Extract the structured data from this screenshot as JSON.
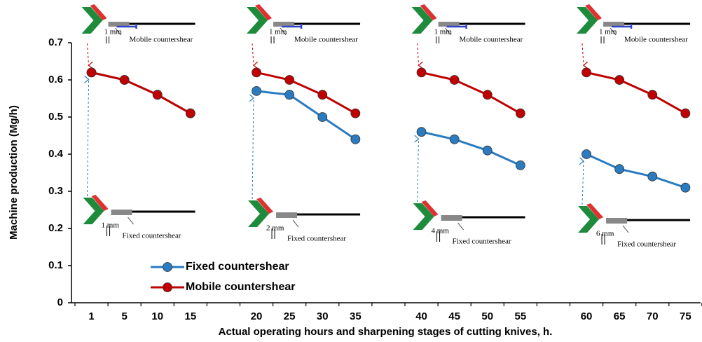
{
  "chart_data": {
    "type": "line",
    "y_label": "Machine production (Mg/h)",
    "x_label": "Actual operating hours and sharpening stages of cutting knives, h.",
    "categories": [
      "1",
      "5",
      "10",
      "15",
      null,
      "20",
      "25",
      "30",
      "35",
      null,
      "40",
      "45",
      "50",
      "55",
      null,
      "60",
      "65",
      "70",
      "75"
    ],
    "series": [
      {
        "name": "Fixed countershear",
        "color": "#2a7bc0",
        "values": [
          0.62,
          0.6,
          0.56,
          0.51,
          null,
          0.57,
          0.56,
          0.5,
          0.44,
          null,
          0.46,
          0.44,
          0.41,
          0.37,
          null,
          0.4,
          0.36,
          0.34,
          0.31
        ]
      },
      {
        "name": "Mobile countershear",
        "color": "#c00000",
        "values": [
          0.62,
          0.6,
          0.56,
          0.51,
          null,
          0.62,
          0.6,
          0.56,
          0.51,
          null,
          0.62,
          0.6,
          0.56,
          0.51,
          null,
          0.62,
          0.6,
          0.56,
          0.51
        ]
      }
    ],
    "ylim": [
      0,
      0.7
    ],
    "yticks": [
      0,
      0.1,
      0.2,
      0.3,
      0.4,
      0.5,
      0.6,
      0.7
    ],
    "legend": "lower left",
    "annotations": [
      {
        "top_gap": "1 mm",
        "top_label": "Mobile countershear",
        "bottom_gap": "1 mm",
        "bottom_label": "Fixed countershear"
      },
      {
        "top_gap": "1 mm",
        "top_label": "Mobile countershear",
        "bottom_gap": "2 mm",
        "bottom_label": "Fixed countershear"
      },
      {
        "top_gap": "1 mm",
        "top_label": "Mobile countershear",
        "bottom_gap": "4 mm",
        "bottom_label": "Fixed countershear"
      },
      {
        "top_gap": "1 mm",
        "top_label": "Mobile countershear",
        "bottom_gap": "6 mm",
        "bottom_label": "Fixed countershear"
      }
    ]
  }
}
